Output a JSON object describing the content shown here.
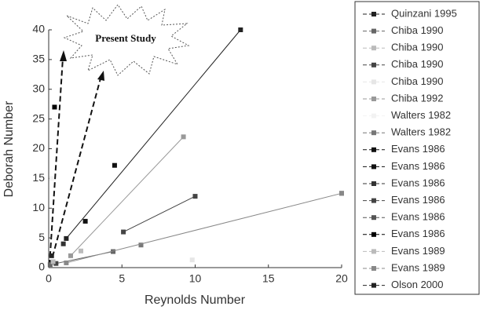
{
  "chart_data": {
    "type": "scatter",
    "x_label": "Reynolds Number",
    "y_label": "Deborah Number",
    "annotation": "Present Study",
    "xlim": [
      0,
      20
    ],
    "xticks": [
      0,
      5,
      10,
      15,
      20
    ],
    "ylim": [
      0,
      40
    ],
    "yticks": [
      0,
      5,
      10,
      15,
      20,
      25,
      30,
      35,
      40
    ],
    "series": [
      {
        "name": "Quinzani 1995",
        "color": "#222222",
        "x": [
          1.2,
          13.1
        ],
        "values": [
          4.9,
          40
        ]
      },
      {
        "name": "Chiba 1990",
        "color": "#666666",
        "x": [
          0.1,
          4.4
        ],
        "values": [
          0.5,
          2.7
        ]
      },
      {
        "name": "Chiba 1990",
        "color": "#bbbbbb",
        "x": [
          2.2
        ],
        "values": [
          2.8
        ]
      },
      {
        "name": "Chiba 1990",
        "color": "#444444",
        "x": [
          0.5
        ],
        "values": [
          0.7
        ]
      },
      {
        "name": "Chiba 1990",
        "color": "#e6e6e6",
        "x": [
          9.8
        ],
        "values": [
          1.3
        ]
      },
      {
        "name": "Chiba 1992",
        "color": "#999999",
        "x": [
          1.5,
          9.2
        ],
        "values": [
          2,
          22
        ]
      },
      {
        "name": "Walters 1982",
        "color": "#f2f2f2",
        "x": [
          0.2
        ],
        "values": [
          15
        ]
      },
      {
        "name": "Walters 1982",
        "color": "#777777",
        "x": [
          6.3
        ],
        "values": [
          3.8
        ]
      },
      {
        "name": "Evans 1986",
        "color": "#111111",
        "x": [
          2.5
        ],
        "values": [
          7.8
        ]
      },
      {
        "name": "Evans 1986",
        "color": "#111111",
        "x": [
          4.5
        ],
        "values": [
          17.2
        ]
      },
      {
        "name": "Evans 1986",
        "color": "#333333",
        "x": [
          1.0
        ],
        "values": [
          4
        ]
      },
      {
        "name": "Evans 1986",
        "color": "#444444",
        "x": [
          5.1,
          10
        ],
        "values": [
          6,
          12
        ]
      },
      {
        "name": "Evans 1986",
        "color": "#555555",
        "x": [
          20
        ],
        "values": [
          12.5
        ]
      },
      {
        "name": "Evans 1986",
        "color": "#000000",
        "x": [
          0.4
        ],
        "values": [
          27
        ]
      },
      {
        "name": "Evans 1989",
        "color": "#bbbbbb",
        "x": [
          0.3
        ],
        "values": [
          1
        ]
      },
      {
        "name": "Evans 1989",
        "color": "#888888",
        "x": [
          1.2,
          20
        ],
        "values": [
          0.8,
          12.5
        ]
      },
      {
        "name": "Olson 2000",
        "color": "#222222",
        "x": [
          0.2
        ],
        "values": [
          2
        ]
      }
    ]
  }
}
